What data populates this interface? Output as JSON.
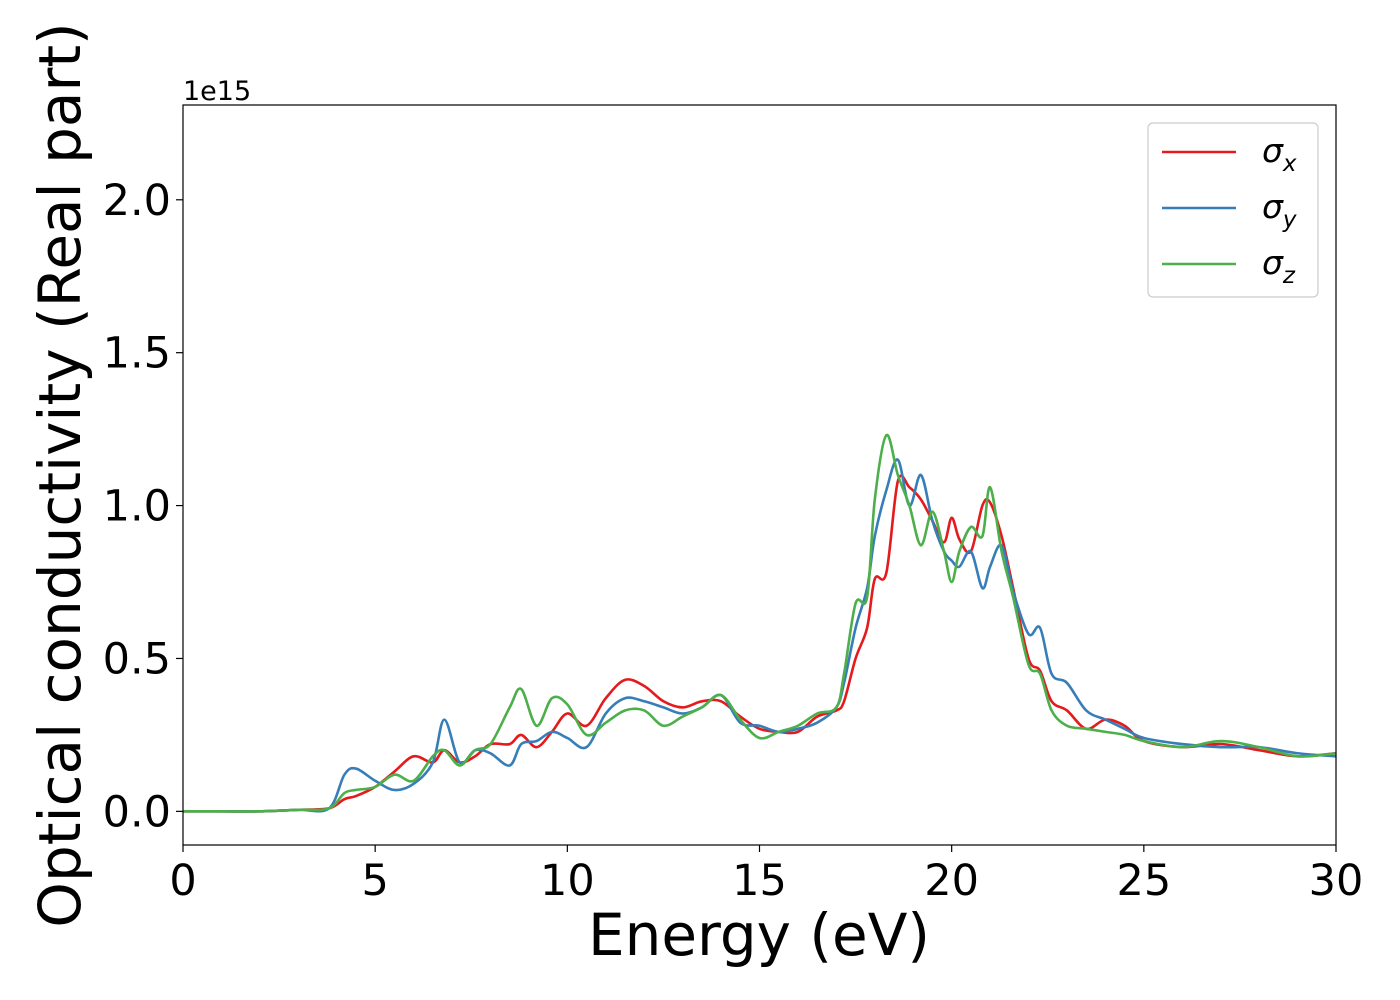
{
  "chart_data": {
    "type": "line",
    "title": "",
    "xlabel": "Energy (eV)",
    "ylabel": "Optical conductivity (Real part)",
    "y_offset_text": "1e15",
    "xlim": [
      0,
      30
    ],
    "ylim": [
      -0.11,
      2.31
    ],
    "x_ticks": [
      0,
      5,
      10,
      15,
      20,
      25,
      30
    ],
    "x_tick_labels": [
      "0",
      "5",
      "10",
      "15",
      "20",
      "25",
      "30"
    ],
    "y_ticks": [
      0.0,
      0.5,
      1.0,
      1.5,
      2.0
    ],
    "y_tick_labels": [
      "0.0",
      "0.5",
      "1.0",
      "1.5",
      "2.0"
    ],
    "grid": false,
    "legend_position": "top-right",
    "x": [
      0,
      1,
      2,
      3,
      3.8,
      4.2,
      4.5,
      5,
      5.5,
      6,
      6.5,
      6.8,
      7.2,
      7.6,
      8,
      8.5,
      8.8,
      9.2,
      9.6,
      10,
      10.5,
      11,
      11.5,
      12,
      12.5,
      13,
      13.5,
      14,
      14.5,
      15,
      15.5,
      16,
      16.5,
      17,
      17.2,
      17.5,
      17.8,
      18,
      18.3,
      18.6,
      18.9,
      19.2,
      19.5,
      19.8,
      20,
      20.2,
      20.5,
      20.8,
      21,
      21.3,
      21.6,
      22,
      22.3,
      22.6,
      23,
      23.5,
      24,
      24.5,
      25,
      26,
      27,
      28,
      29,
      30
    ],
    "series": [
      {
        "name": "σx",
        "color": "#e41a1c",
        "values": [
          0.0,
          0.0,
          0.0,
          0.005,
          0.01,
          0.04,
          0.05,
          0.08,
          0.13,
          0.18,
          0.16,
          0.2,
          0.16,
          0.18,
          0.22,
          0.22,
          0.25,
          0.21,
          0.26,
          0.32,
          0.28,
          0.37,
          0.43,
          0.41,
          0.36,
          0.34,
          0.36,
          0.36,
          0.31,
          0.27,
          0.26,
          0.26,
          0.31,
          0.33,
          0.36,
          0.5,
          0.6,
          0.76,
          0.78,
          1.08,
          1.06,
          1.02,
          0.95,
          0.88,
          0.96,
          0.89,
          0.85,
          1.0,
          1.01,
          0.9,
          0.73,
          0.5,
          0.46,
          0.36,
          0.33,
          0.27,
          0.3,
          0.28,
          0.23,
          0.21,
          0.22,
          0.2,
          0.18,
          0.19
        ]
      },
      {
        "name": "σy",
        "color": "#377eb8",
        "values": [
          0.0,
          0.0,
          0.0,
          0.005,
          0.01,
          0.12,
          0.14,
          0.1,
          0.07,
          0.09,
          0.16,
          0.3,
          0.16,
          0.2,
          0.19,
          0.15,
          0.22,
          0.23,
          0.26,
          0.24,
          0.21,
          0.32,
          0.37,
          0.36,
          0.34,
          0.32,
          0.34,
          0.38,
          0.29,
          0.28,
          0.26,
          0.27,
          0.29,
          0.34,
          0.42,
          0.6,
          0.73,
          0.9,
          1.05,
          1.15,
          1.0,
          1.1,
          0.95,
          0.85,
          0.82,
          0.8,
          0.85,
          0.73,
          0.8,
          0.87,
          0.72,
          0.58,
          0.6,
          0.45,
          0.42,
          0.33,
          0.3,
          0.27,
          0.24,
          0.22,
          0.21,
          0.21,
          0.19,
          0.18
        ]
      },
      {
        "name": "σz",
        "color": "#4daf4a",
        "values": [
          0.0,
          0.0,
          0.0,
          0.005,
          0.01,
          0.06,
          0.07,
          0.08,
          0.12,
          0.1,
          0.18,
          0.2,
          0.15,
          0.2,
          0.22,
          0.34,
          0.4,
          0.28,
          0.37,
          0.35,
          0.25,
          0.29,
          0.33,
          0.33,
          0.28,
          0.31,
          0.34,
          0.38,
          0.3,
          0.24,
          0.26,
          0.28,
          0.32,
          0.34,
          0.45,
          0.68,
          0.7,
          1.02,
          1.23,
          1.1,
          1.0,
          0.87,
          0.98,
          0.85,
          0.75,
          0.85,
          0.93,
          0.9,
          1.06,
          0.85,
          0.7,
          0.48,
          0.45,
          0.33,
          0.28,
          0.27,
          0.26,
          0.25,
          0.23,
          0.21,
          0.23,
          0.21,
          0.18,
          0.19
        ]
      }
    ]
  }
}
